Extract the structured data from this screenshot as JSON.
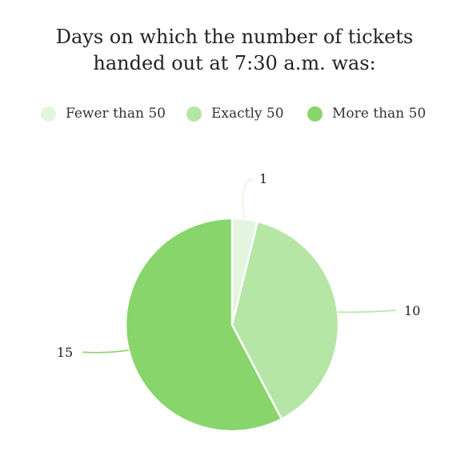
{
  "chart_data": {
    "type": "pie",
    "title_lines": [
      "Days on which the number of tickets",
      "handed out at 7:30 a.m. was:"
    ],
    "legend_position": "top",
    "slices": [
      {
        "label": "Fewer than 50",
        "value": 1,
        "color": "#e3f4df"
      },
      {
        "label": "Exactly 50",
        "value": 10,
        "color": "#b5e6a5"
      },
      {
        "label": "More than 50",
        "value": 15,
        "color": "#88d56b"
      }
    ]
  }
}
